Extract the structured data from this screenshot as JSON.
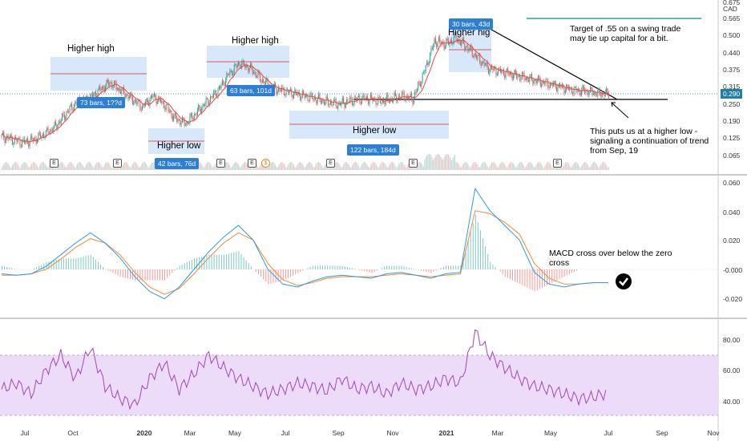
{
  "chart_data": [
    {
      "type": "candlestick",
      "panel": "price",
      "currency": "CAD",
      "x_labels": [
        "Jul",
        "Oct",
        "2020",
        "Mar",
        "May",
        "Jul",
        "Sep",
        "Nov",
        "2021",
        "Mar",
        "May",
        "Jul",
        "Sep",
        "Nov"
      ],
      "y_ticks": [
        0.065,
        0.125,
        0.19,
        0.25,
        0.315,
        0.375,
        0.44,
        0.5,
        0.565,
        0.675
      ],
      "last_price": "0.290",
      "close_series": {
        "x": [
          0,
          10,
          20,
          30,
          40,
          50,
          60,
          70,
          80,
          90,
          100,
          110,
          120,
          130,
          140,
          150,
          160,
          170,
          180,
          190,
          200,
          210,
          220,
          230,
          240,
          250,
          260,
          270,
          280,
          290,
          300,
          310,
          320,
          330,
          340,
          350,
          360,
          370,
          380,
          390,
          400,
          410,
          420,
          430,
          440,
          450,
          460,
          470,
          480,
          490,
          500,
          510,
          520,
          530,
          540,
          550,
          560,
          570
        ],
        "y": [
          0.13,
          0.12,
          0.11,
          0.12,
          0.14,
          0.17,
          0.22,
          0.26,
          0.27,
          0.3,
          0.33,
          0.3,
          0.27,
          0.24,
          0.28,
          0.25,
          0.2,
          0.18,
          0.22,
          0.26,
          0.3,
          0.36,
          0.4,
          0.38,
          0.34,
          0.31,
          0.3,
          0.29,
          0.28,
          0.27,
          0.26,
          0.25,
          0.26,
          0.27,
          0.27,
          0.26,
          0.27,
          0.28,
          0.27,
          0.36,
          0.48,
          0.47,
          0.49,
          0.46,
          0.42,
          0.38,
          0.37,
          0.36,
          0.35,
          0.34,
          0.33,
          0.32,
          0.31,
          0.3,
          0.3,
          0.29,
          0.29,
          0.29
        ]
      },
      "horizontal_levels": [
        {
          "value": 0.275,
          "kind": "support"
        },
        {
          "value": 0.565,
          "kind": "target"
        }
      ],
      "trendline": {
        "from": [
          308,
          0.545
        ],
        "to": [
          405,
          0.283
        ]
      }
    },
    {
      "type": "line",
      "panel": "macd",
      "y_ticks": [
        0.06,
        0.04,
        0.02,
        -0.0,
        -0.02
      ],
      "series": [
        {
          "values": [
            -0.003,
            -0.004,
            -0.003,
            0.002,
            0.01,
            0.018,
            0.025,
            0.018,
            0.008,
            -0.005,
            -0.015,
            -0.02,
            -0.012,
            0.0,
            0.012,
            0.022,
            0.03,
            0.02,
            0.0,
            -0.01,
            -0.012,
            -0.008,
            -0.005,
            -0.004,
            -0.005,
            -0.006,
            -0.003,
            -0.002,
            -0.004,
            -0.006,
            -0.003,
            -0.002,
            0.055,
            0.04,
            0.03,
            0.02,
            -0.002,
            -0.01,
            -0.012,
            -0.01,
            -0.009,
            -0.009
          ]
        },
        {
          "values": [
            -0.004,
            -0.004,
            -0.003,
            0.0,
            0.007,
            0.015,
            0.021,
            0.018,
            0.01,
            -0.002,
            -0.012,
            -0.017,
            -0.013,
            -0.003,
            0.008,
            0.018,
            0.025,
            0.02,
            0.004,
            -0.007,
            -0.011,
            -0.009,
            -0.006,
            -0.005,
            -0.005,
            -0.005,
            -0.004,
            -0.003,
            -0.004,
            -0.005,
            -0.004,
            -0.003,
            0.04,
            0.038,
            0.032,
            0.024,
            0.004,
            -0.006,
            -0.01,
            -0.01,
            -0.009,
            -0.009
          ]
        }
      ]
    },
    {
      "type": "line",
      "panel": "rsi",
      "y_ticks": [
        80.0,
        60.0,
        40.0
      ],
      "band": [
        30,
        70
      ],
      "values": [
        48,
        52,
        45,
        60,
        70,
        55,
        75,
        50,
        42,
        38,
        55,
        65,
        48,
        58,
        70,
        62,
        55,
        50,
        45,
        48,
        52,
        50,
        47,
        55,
        48,
        50,
        45,
        52,
        48,
        50,
        55,
        52,
        85,
        70,
        62,
        55,
        50,
        48,
        45,
        42,
        43,
        46
      ]
    }
  ],
  "annotations": {
    "higher_high_1": "Higher high",
    "higher_high_2": "Higher high",
    "higher_high_3": "Higher hig",
    "higher_low_1": "Higher low",
    "higher_low_2": "Higher low",
    "bars_1": "73 bars, 1??d",
    "bars_2": "42 bars, 76d",
    "bars_3": "63 bars, 101d",
    "bars_4": "122 bars, 184d",
    "bars_5": "30 bars, 43d",
    "target_note": "Target of .55 on a swing trade may tie up capital for a bit.",
    "higher_low_note": "This puts us at a higher low - signaling a continuation of trend from Sep, 19",
    "macd_note": "MACD cross over below the zero cross",
    "earnings_marker": "E",
    "dividend_marker": "$"
  },
  "colors": {
    "up_candle": "#26a69a",
    "down_candle": "#ef5350",
    "ma": "#e84a3c",
    "macd_line": "#2f9be0",
    "signal_line": "#f08a3c",
    "rsi_line": "#a347b5",
    "rsi_band": "#e9d5f7",
    "box_fill": "#c8e0f7",
    "box_stroke": "#e05656",
    "target_line": "#2aa48f",
    "tag_bg": "#2c7fd6"
  }
}
